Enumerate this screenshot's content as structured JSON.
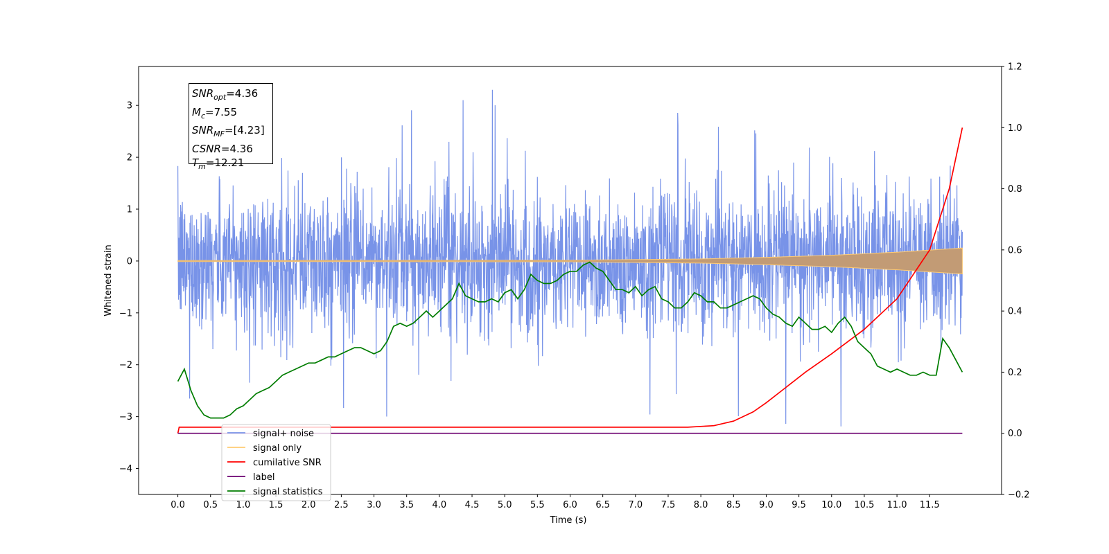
{
  "chart_data": {
    "type": "line",
    "xlabel": "Time (s)",
    "ylabel": "Whitened strain",
    "xlim": [
      -0.6,
      12.6
    ],
    "ylim": [
      -4.5,
      3.75
    ],
    "ylim_right": [
      -0.2,
      1.2
    ],
    "x_ticks": [
      "0.0",
      "0.5",
      "1.0",
      "1.5",
      "2.0",
      "2.5",
      "3.0",
      "3.5",
      "4.0",
      "4.5",
      "5.0",
      "5.5",
      "6.0",
      "6.5",
      "7.0",
      "7.5",
      "8.0",
      "8.5",
      "9.0",
      "9.5",
      "10.0",
      "10.5",
      "11.0",
      "11.5"
    ],
    "y_ticks": [
      "3",
      "2",
      "1",
      "0",
      "−1",
      "−2",
      "−3",
      "−4"
    ],
    "y_ticks_right": [
      "1.2",
      "1.0",
      "0.8",
      "0.6",
      "0.4",
      "0.2",
      "0.0",
      "−0.2"
    ],
    "stats": {
      "snr_opt": {
        "base": "SNR",
        "sub": "opt",
        "value": "=4.36"
      },
      "mc": {
        "base": "M",
        "sub": "c",
        "value": "=7.55"
      },
      "snr_mf": {
        "base": "SNR",
        "sub": "MF",
        "value": "=[4.23]"
      },
      "csnr": {
        "base": "CSNR",
        "sub": "",
        "value": "=4.36"
      },
      "tm": {
        "base": "T",
        "sub": "m",
        "value": "=12.21"
      }
    },
    "series": [
      {
        "name": "signal+ noise",
        "color": "#7893e8",
        "axis": "left",
        "kind": "noise",
        "t_range": [
          0,
          12
        ],
        "amplitude": 1.2
      },
      {
        "name": "signal only",
        "color": "#ffcb73",
        "axis": "left",
        "kind": "chirp",
        "envelope_x": [
          0,
          6,
          8,
          9,
          10,
          11,
          12
        ],
        "envelope_y": [
          0.01,
          0.015,
          0.04,
          0.07,
          0.11,
          0.17,
          0.25
        ]
      },
      {
        "name": "cumilative SNR",
        "color": "#ff0000",
        "axis": "right",
        "x": [
          0,
          0.02,
          7.8,
          8.2,
          8.5,
          8.8,
          9.0,
          9.3,
          9.6,
          10.0,
          10.5,
          11.0,
          11.5,
          11.8,
          12.0
        ],
        "y": [
          0.0,
          0.02,
          0.02,
          0.025,
          0.04,
          0.07,
          0.1,
          0.15,
          0.2,
          0.26,
          0.34,
          0.44,
          0.6,
          0.8,
          1.0
        ]
      },
      {
        "name": "label",
        "color": "#6c0070",
        "axis": "right",
        "x": [
          0,
          12
        ],
        "y": [
          0.0,
          0.0
        ]
      },
      {
        "name": "signal statistics",
        "color": "#007d00",
        "axis": "right",
        "x": [
          0,
          0.1,
          0.2,
          0.3,
          0.4,
          0.5,
          0.6,
          0.7,
          0.8,
          0.9,
          1.0,
          1.1,
          1.2,
          1.3,
          1.4,
          1.5,
          1.6,
          1.7,
          1.8,
          1.9,
          2.0,
          2.1,
          2.2,
          2.3,
          2.4,
          2.5,
          2.6,
          2.7,
          2.8,
          2.9,
          3.0,
          3.1,
          3.2,
          3.3,
          3.4,
          3.5,
          3.6,
          3.7,
          3.8,
          3.9,
          4.0,
          4.1,
          4.2,
          4.3,
          4.4,
          4.5,
          4.6,
          4.7,
          4.8,
          4.9,
          5.0,
          5.1,
          5.2,
          5.3,
          5.4,
          5.5,
          5.6,
          5.7,
          5.8,
          5.9,
          6.0,
          6.1,
          6.2,
          6.3,
          6.4,
          6.5,
          6.6,
          6.7,
          6.8,
          6.9,
          7.0,
          7.1,
          7.2,
          7.3,
          7.4,
          7.5,
          7.6,
          7.7,
          7.8,
          7.9,
          8.0,
          8.1,
          8.2,
          8.3,
          8.4,
          8.5,
          8.6,
          8.7,
          8.8,
          8.9,
          9.0,
          9.1,
          9.2,
          9.3,
          9.4,
          9.5,
          9.6,
          9.7,
          9.8,
          9.9,
          10.0,
          10.1,
          10.2,
          10.3,
          10.4,
          10.5,
          10.6,
          10.7,
          10.8,
          10.9,
          11.0,
          11.1,
          11.2,
          11.3,
          11.4,
          11.5,
          11.6,
          11.7,
          11.8,
          11.9,
          12.0
        ],
        "y": [
          0.17,
          0.21,
          0.14,
          0.09,
          0.06,
          0.05,
          0.05,
          0.05,
          0.06,
          0.08,
          0.09,
          0.11,
          0.13,
          0.14,
          0.15,
          0.17,
          0.19,
          0.2,
          0.21,
          0.22,
          0.23,
          0.23,
          0.24,
          0.25,
          0.25,
          0.26,
          0.27,
          0.28,
          0.28,
          0.27,
          0.26,
          0.27,
          0.3,
          0.35,
          0.36,
          0.35,
          0.36,
          0.38,
          0.4,
          0.38,
          0.4,
          0.42,
          0.44,
          0.49,
          0.45,
          0.44,
          0.43,
          0.43,
          0.44,
          0.43,
          0.46,
          0.47,
          0.44,
          0.47,
          0.52,
          0.5,
          0.49,
          0.49,
          0.5,
          0.52,
          0.53,
          0.53,
          0.55,
          0.56,
          0.54,
          0.53,
          0.5,
          0.47,
          0.47,
          0.46,
          0.48,
          0.45,
          0.47,
          0.48,
          0.44,
          0.43,
          0.41,
          0.41,
          0.43,
          0.46,
          0.45,
          0.43,
          0.43,
          0.41,
          0.41,
          0.42,
          0.43,
          0.44,
          0.45,
          0.44,
          0.41,
          0.39,
          0.38,
          0.36,
          0.35,
          0.38,
          0.36,
          0.34,
          0.34,
          0.35,
          0.33,
          0.36,
          0.38,
          0.35,
          0.3,
          0.28,
          0.26,
          0.22,
          0.21,
          0.2,
          0.21,
          0.2,
          0.19,
          0.19,
          0.2,
          0.19,
          0.19,
          0.31,
          0.28,
          0.24,
          0.2
        ]
      }
    ],
    "legend_placement": "lower-left"
  }
}
